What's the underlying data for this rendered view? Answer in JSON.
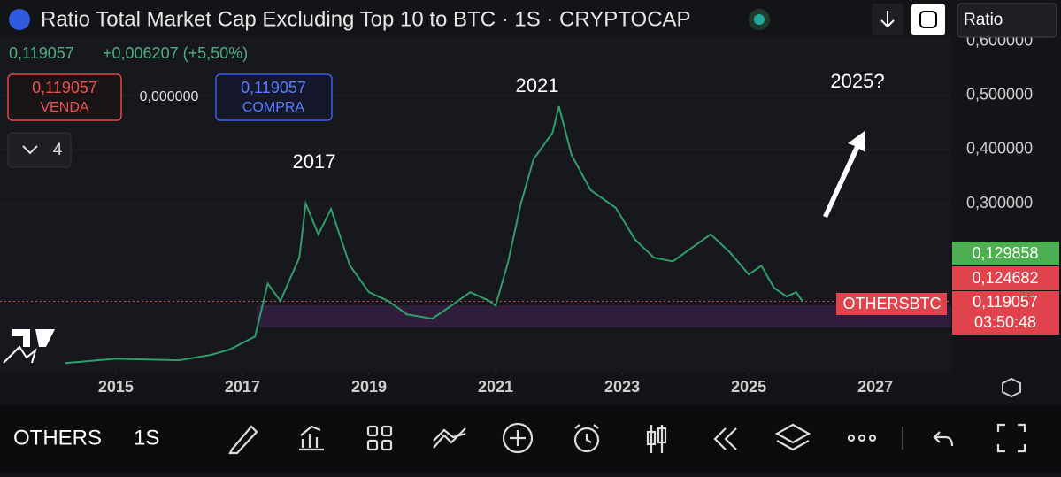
{
  "header": {
    "title": "Ratio Total Market Cap Excluding Top 10 to BTC · 1S · CRYPTOCAP",
    "price": "0,119057",
    "change": "+0,006207 (+5,50%)",
    "scale": "Ratio"
  },
  "trade": {
    "sell_price": "0,119057",
    "sell_label": "VENDA",
    "spread": "0,000000",
    "buy_price": "0,119057",
    "buy_label": "COMPRA"
  },
  "indicators": "4",
  "chart_data": {
    "type": "line",
    "annotations": [
      "2017",
      "2021",
      "2025?"
    ],
    "x": [
      2014.2,
      2015,
      2016,
      2016.5,
      2016.8,
      2017.2,
      2017.4,
      2017.6,
      2017.9,
      2018.0,
      2018.2,
      2018.4,
      2018.7,
      2019.0,
      2019.3,
      2019.6,
      2020.0,
      2020.3,
      2020.6,
      2020.9,
      2021.0,
      2021.2,
      2021.4,
      2021.6,
      2021.9,
      2022.0,
      2022.2,
      2022.5,
      2022.9,
      2023.2,
      2023.5,
      2023.8,
      2024.1,
      2024.4,
      2024.7,
      2025.0,
      2025.2,
      2025.4,
      2025.6,
      2025.75,
      2025.85
    ],
    "series": [
      {
        "name": "OTHERSBTC",
        "color": "#2e9e6b",
        "values": [
          0.005,
          0.013,
          0.01,
          0.02,
          0.03,
          0.054,
          0.152,
          0.12,
          0.2,
          0.3,
          0.243,
          0.29,
          0.185,
          0.136,
          0.12,
          0.095,
          0.087,
          0.111,
          0.136,
          0.12,
          0.111,
          0.193,
          0.3,
          0.382,
          0.431,
          0.48,
          0.39,
          0.325,
          0.292,
          0.234,
          0.2,
          0.193,
          0.218,
          0.243,
          0.21,
          0.169,
          0.185,
          0.144,
          0.128,
          0.136,
          0.119
        ]
      }
    ],
    "current": 0.119057,
    "price_tags": [
      "0,129858",
      "0,124682",
      "0,119057",
      "03:50:48"
    ],
    "xlim": [
      2013.17,
      2028.2
    ],
    "xticks": [
      2015,
      2017,
      2019,
      2021,
      2023,
      2025,
      2027
    ],
    "ylim": [
      -0.011,
      0.611
    ],
    "yticks": [
      {
        "value": 0.3,
        "label": "0,300000"
      },
      {
        "value": 0.4,
        "label": "0,400000"
      },
      {
        "value": 0.5,
        "label": "0,500000"
      },
      {
        "value": 0.6,
        "label": "0,600000"
      }
    ]
  },
  "bottom": {
    "symbol": "OTHERS",
    "interval": "1S"
  }
}
